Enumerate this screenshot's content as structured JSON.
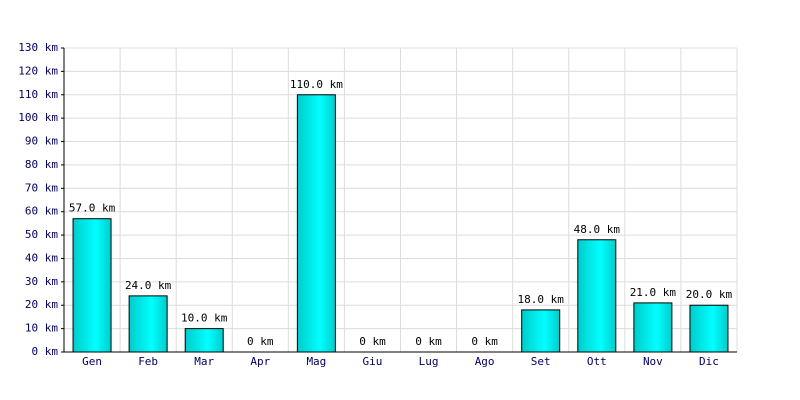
{
  "chart_data": {
    "type": "bar",
    "categories": [
      "Gen",
      "Feb",
      "Mar",
      "Apr",
      "Mag",
      "Giu",
      "Lug",
      "Ago",
      "Set",
      "Ott",
      "Nov",
      "Dic"
    ],
    "values": [
      57,
      24,
      10,
      0,
      110,
      0,
      0,
      0,
      18,
      48,
      21,
      20
    ],
    "value_labels": [
      "57.0 km",
      "24.0 km",
      "10.0 km",
      "0 km",
      "110.0 km",
      "0 km",
      "0 km",
      "0 km",
      "18.0 km",
      "48.0 km",
      "21.0 km",
      "20.0 km"
    ],
    "color": "#00cccc",
    "ylim": [
      0,
      130
    ],
    "yticks": [
      {
        "value": 0,
        "label": "0 km"
      },
      {
        "value": 10,
        "label": "10 km"
      },
      {
        "value": 20,
        "label": "20 km"
      },
      {
        "value": 30,
        "label": "30 km"
      },
      {
        "value": 40,
        "label": "40 km"
      },
      {
        "value": 50,
        "label": "50 km"
      },
      {
        "value": 60,
        "label": "60 km"
      },
      {
        "value": 70,
        "label": "70 km"
      },
      {
        "value": 80,
        "label": "80 km"
      },
      {
        "value": 90,
        "label": "90 km"
      },
      {
        "value": 100,
        "label": "100 km"
      },
      {
        "value": 110,
        "label": "110 km"
      },
      {
        "value": 120,
        "label": "120 km"
      },
      {
        "value": 130,
        "label": "130 km"
      }
    ],
    "grid": true
  }
}
